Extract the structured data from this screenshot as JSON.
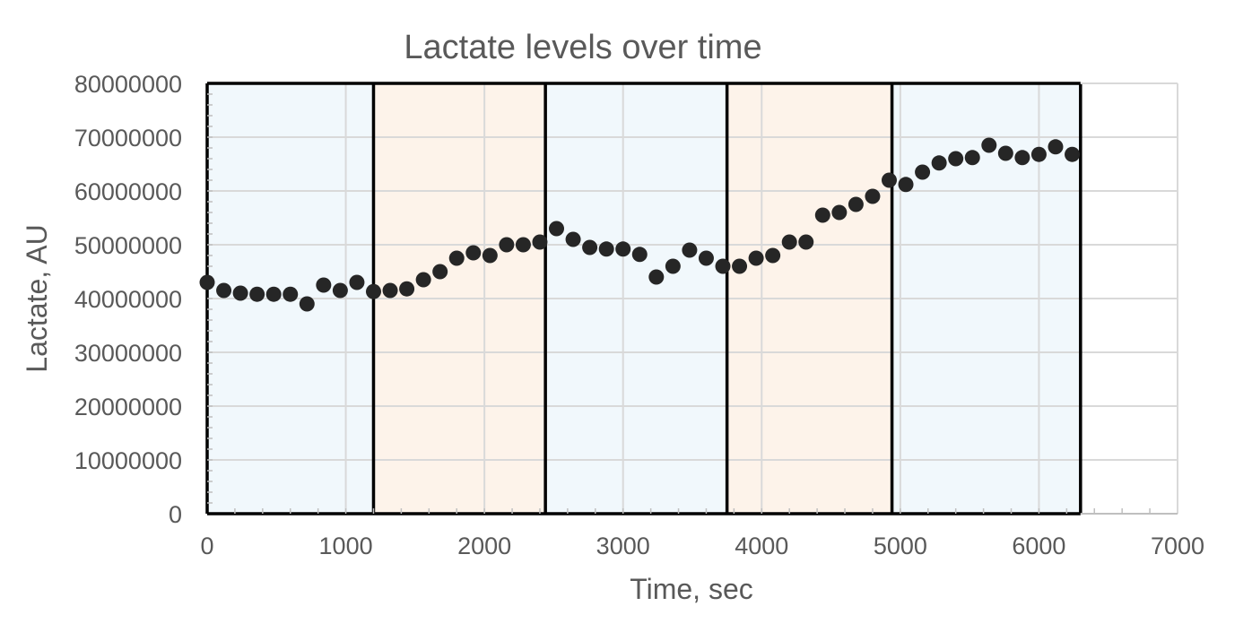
{
  "chart_data": {
    "type": "scatter",
    "title": "Lactate levels over time",
    "xlabel": "Time, sec",
    "ylabel": "Lactate, AU",
    "xlim": [
      0,
      7000
    ],
    "ylim": [
      0,
      80000000
    ],
    "x_ticks": [
      0,
      1000,
      2000,
      3000,
      4000,
      5000,
      6000,
      7000
    ],
    "y_ticks": [
      0,
      10000000,
      20000000,
      30000000,
      40000000,
      50000000,
      60000000,
      70000000,
      80000000
    ],
    "grid": true,
    "legend": "none",
    "shaded_regions": [
      {
        "x_start": 0,
        "x_end": 1200,
        "color": "#f1f8fc"
      },
      {
        "x_start": 1200,
        "x_end": 2440,
        "color": "#fdf3ea"
      },
      {
        "x_start": 2440,
        "x_end": 3750,
        "color": "#f1f8fc"
      },
      {
        "x_start": 3750,
        "x_end": 4940,
        "color": "#fdf3ea"
      },
      {
        "x_start": 4940,
        "x_end": 6300,
        "color": "#f1f8fc"
      }
    ],
    "region_boundaries": [
      0,
      1200,
      2440,
      3750,
      4940,
      6300
    ],
    "series": [
      {
        "marker_color": "#262626",
        "x": [
          0,
          120,
          240,
          360,
          480,
          600,
          720,
          840,
          960,
          1080,
          1200,
          1320,
          1440,
          1560,
          1680,
          1800,
          1920,
          2040,
          2160,
          2280,
          2400,
          2520,
          2640,
          2760,
          2880,
          3000,
          3120,
          3240,
          3360,
          3480,
          3600,
          3720,
          3840,
          3960,
          4080,
          4200,
          4320,
          4440,
          4560,
          4680,
          4800,
          4920,
          5040,
          5160,
          5280,
          5400,
          5520,
          5640,
          5760,
          5880,
          6000,
          6120,
          6240
        ],
        "y": [
          43000000,
          41500000,
          41000000,
          40800000,
          40800000,
          40800000,
          39000000,
          42500000,
          41500000,
          43000000,
          41300000,
          41500000,
          41800000,
          43500000,
          45000000,
          47500000,
          48500000,
          48000000,
          50000000,
          50000000,
          50500000,
          53000000,
          51000000,
          49500000,
          49200000,
          49200000,
          48200000,
          44000000,
          46000000,
          49000000,
          47500000,
          46000000,
          46000000,
          47500000,
          48000000,
          50500000,
          50500000,
          55500000,
          56000000,
          57500000,
          59000000,
          62000000,
          61200000,
          63500000,
          65200000,
          66000000,
          66200000,
          68500000,
          67000000,
          66200000,
          66800000,
          68200000,
          66800000
        ]
      }
    ]
  }
}
